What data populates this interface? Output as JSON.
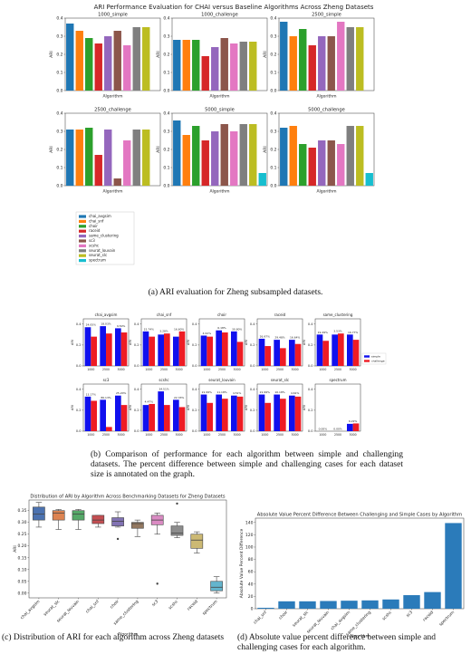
{
  "figure_a": {
    "title": "ARI Performance Evaluation for CHAI versus Baseline Algorithms Across Zheng Datasets",
    "legend": {
      "names": [
        "chai_avgsim",
        "chai_snf",
        "choir",
        "raceid",
        "same_clustering",
        "sc3",
        "scshc",
        "seurat_louvain",
        "seurat_slc",
        "spectrum"
      ],
      "colors": [
        "#1f77b4",
        "#ff7f0e",
        "#2ca02c",
        "#d62728",
        "#9467bd",
        "#8c564b",
        "#e377c2",
        "#7f7f7f",
        "#bcbd22",
        "#17becf"
      ]
    }
  },
  "figure_b": {
    "legend": {
      "names": [
        "simple",
        "challenge"
      ],
      "colors": [
        "#1010ee",
        "#ee1c24"
      ]
    }
  },
  "chart_data": [
    {
      "type": "bar",
      "title": "1000_simple",
      "xlabel": "Algorithm",
      "ylabel": "ARI",
      "values": [
        0.37,
        0.33,
        0.29,
        0.26,
        0.3,
        0.33,
        0.25,
        0.35,
        0.35,
        null
      ],
      "ylim": [
        0,
        0.4
      ],
      "yticks": [
        {
          "value": 0,
          "label": "0.0"
        },
        0.1,
        0.2,
        0.3,
        0.4
      ]
    },
    {
      "type": "bar",
      "title": "1000_challenge",
      "xlabel": "Algorithm",
      "ylabel": "ARI",
      "values": [
        0.28,
        0.28,
        0.28,
        0.19,
        0.24,
        0.29,
        0.26,
        0.27,
        0.27,
        null
      ],
      "ylim": [
        0,
        0.4
      ],
      "yticks": [
        {
          "value": 0,
          "label": "0.0"
        },
        0.1,
        0.2,
        0.3,
        0.4
      ]
    },
    {
      "type": "bar",
      "title": "2500_simple",
      "xlabel": "Algorithm",
      "ylabel": "ARI",
      "values": [
        0.38,
        0.3,
        0.34,
        0.25,
        0.3,
        0.3,
        0.38,
        0.35,
        0.35,
        null
      ],
      "ylim": [
        0,
        0.4
      ],
      "yticks": [
        {
          "value": 0,
          "label": "0.0"
        },
        0.1,
        0.2,
        0.3,
        0.4
      ]
    },
    {
      "type": "bar",
      "title": "2500_challenge",
      "xlabel": "Algorithm",
      "ylabel": "ARI",
      "values": [
        0.31,
        0.31,
        0.32,
        0.17,
        0.31,
        0.04,
        0.25,
        0.31,
        0.31,
        null
      ],
      "ylim": [
        0,
        0.4
      ],
      "yticks": [
        {
          "value": 0,
          "label": "0.0"
        },
        0.1,
        0.2,
        0.3,
        0.4
      ]
    },
    {
      "type": "bar",
      "title": "5000_simple",
      "xlabel": "Algorithm",
      "ylabel": "ARI",
      "values": [
        0.36,
        0.28,
        0.33,
        0.25,
        0.3,
        0.34,
        0.3,
        0.34,
        0.34,
        0.07
      ],
      "ylim": [
        0,
        0.4
      ],
      "yticks": [
        {
          "value": 0,
          "label": "0.0"
        },
        0.1,
        0.2,
        0.3,
        0.4
      ]
    },
    {
      "type": "bar",
      "title": "5000_challenge",
      "xlabel": "Algorithm",
      "ylabel": "ARI",
      "values": [
        0.32,
        0.33,
        0.23,
        0.21,
        0.25,
        0.25,
        0.23,
        0.33,
        0.33,
        0.07
      ],
      "ylim": [
        0,
        0.4
      ],
      "yticks": [
        {
          "value": 0,
          "label": "0.0"
        },
        0.1,
        0.2,
        0.3,
        0.4
      ]
    },
    {
      "type": "grouped_bar",
      "title": "chai_avgsim",
      "ylabel": "ARI",
      "categories": [
        "1000",
        "2500",
        "5000"
      ],
      "series": [
        {
          "values": [
            0.37,
            0.38,
            0.36
          ]
        },
        {
          "values": [
            0.28,
            0.31,
            0.32
          ]
        }
      ],
      "annotations": [
        "24.05%",
        "18.03%",
        "9.50%"
      ],
      "ylim": [
        0,
        0.45
      ],
      "yticks": [
        {
          "value": 0,
          "label": "0.0"
        },
        0.2,
        0.4
      ]
    },
    {
      "type": "grouped_bar",
      "title": "chai_snf",
      "ylabel": "ARI",
      "categories": [
        "1000",
        "2500",
        "5000"
      ],
      "series": [
        {
          "values": [
            0.33,
            0.3,
            0.28
          ]
        },
        {
          "values": [
            0.28,
            0.31,
            0.33
          ]
        }
      ],
      "annotations": [
        "15.74%",
        "3.28%",
        "16.60%"
      ],
      "ylim": [
        0,
        0.45
      ],
      "yticks": [
        {
          "value": 0,
          "label": "0.0"
        },
        0.2,
        0.4
      ]
    },
    {
      "type": "grouped_bar",
      "title": "choir",
      "ylabel": "ARI",
      "categories": [
        "1000",
        "2500",
        "5000"
      ],
      "series": [
        {
          "values": [
            0.29,
            0.34,
            0.33
          ]
        },
        {
          "values": [
            0.28,
            0.32,
            0.23
          ]
        }
      ],
      "annotations": [
        "4.91%",
        "6.18%",
        "30.80%"
      ],
      "ylim": [
        0,
        0.45
      ],
      "yticks": [
        {
          "value": 0,
          "label": "0.0"
        },
        0.2,
        0.4
      ]
    },
    {
      "type": "grouped_bar",
      "title": "raceid",
      "ylabel": "ARI",
      "categories": [
        "1000",
        "2500",
        "5000"
      ],
      "series": [
        {
          "values": [
            0.26,
            0.25,
            0.25
          ]
        },
        {
          "values": [
            0.19,
            0.17,
            0.21
          ]
        }
      ],
      "annotations": [
        "26.97%",
        "29.48%",
        "16.64%"
      ],
      "ylim": [
        0,
        0.45
      ],
      "yticks": [
        {
          "value": 0,
          "label": "0.0"
        },
        0.2,
        0.4
      ]
    },
    {
      "type": "grouped_bar",
      "title": "same_clustering",
      "ylabel": "ARI",
      "categories": [
        "1000",
        "2500",
        "5000"
      ],
      "series": [
        {
          "values": [
            0.3,
            0.3,
            0.3
          ]
        },
        {
          "values": [
            0.24,
            0.31,
            0.25
          ]
        }
      ],
      "annotations": [
        "19.49%",
        "3.53%",
        "16.77%"
      ],
      "ylim": [
        0,
        0.45
      ],
      "yticks": [
        {
          "value": 0,
          "label": "0.0"
        },
        0.2,
        0.4
      ]
    },
    {
      "type": "grouped_bar",
      "title": "sc3",
      "ylabel": "ARI",
      "categories": [
        "1000",
        "2500",
        "5000"
      ],
      "series": [
        {
          "values": [
            0.33,
            0.3,
            0.34
          ]
        },
        {
          "values": [
            0.29,
            0.04,
            0.25
          ]
        }
      ],
      "annotations": [
        "13.17%",
        "86.13%",
        "25.20%"
      ],
      "ylim": [
        0,
        0.45
      ],
      "yticks": [
        {
          "value": 0,
          "label": "0.0"
        },
        0.2,
        0.4
      ]
    },
    {
      "type": "grouped_bar",
      "title": "scshc",
      "ylabel": "ARI",
      "categories": [
        "1000",
        "2500",
        "5000"
      ],
      "series": [
        {
          "values": [
            0.25,
            0.38,
            0.3
          ]
        },
        {
          "values": [
            0.26,
            0.25,
            0.23
          ]
        }
      ],
      "annotations": [
        "4.47%",
        "34.51%",
        "22.33%"
      ],
      "ylim": [
        0,
        0.45
      ],
      "yticks": [
        {
          "value": 0,
          "label": "0.0"
        },
        0.2,
        0.4
      ]
    },
    {
      "type": "grouped_bar",
      "title": "seurat_louvain",
      "ylabel": "ARI",
      "categories": [
        "1000",
        "2500",
        "5000"
      ],
      "series": [
        {
          "values": [
            0.35,
            0.35,
            0.34
          ]
        },
        {
          "values": [
            0.27,
            0.31,
            0.33
          ]
        }
      ],
      "annotations": [
        "21.99%",
        "11.18%",
        "4.51%"
      ],
      "ylim": [
        0,
        0.45
      ],
      "yticks": [
        {
          "value": 0,
          "label": "0.0"
        },
        0.2,
        0.4
      ]
    },
    {
      "type": "grouped_bar",
      "title": "seurat_slc",
      "ylabel": "ARI",
      "categories": [
        "1000",
        "2500",
        "5000"
      ],
      "series": [
        {
          "values": [
            0.35,
            0.35,
            0.34
          ]
        },
        {
          "values": [
            0.27,
            0.31,
            0.33
          ]
        }
      ],
      "annotations": [
        "21.99%",
        "10.18%",
        "4.61%"
      ],
      "ylim": [
        0,
        0.45
      ],
      "yticks": [
        {
          "value": 0,
          "label": "0.0"
        },
        0.2,
        0.4
      ]
    },
    {
      "type": "grouped_bar",
      "title": "spectrum",
      "ylabel": "ARI",
      "categories": [
        "1000",
        "2500",
        "5000"
      ],
      "series": [
        {
          "values": [
            0,
            0,
            0.07
          ]
        },
        {
          "values": [
            0,
            0,
            0.074
          ]
        }
      ],
      "annotations": [
        "0.00%",
        "0.00%",
        "6.22%"
      ],
      "ylim": [
        0,
        0.45
      ],
      "yticks": [
        {
          "value": 0,
          "label": "0.0"
        },
        0.2,
        0.4
      ]
    },
    {
      "type": "box",
      "title": "Distribution of ARI by Algorithm Across Benchmarking Datasets for Zheng Datasets",
      "xlabel": "Algorithm",
      "ylabel": "ARI",
      "categories": [
        "chai_avgsim",
        "seurat_slc",
        "seurat_louvain",
        "chai_snf",
        "choir",
        "same_clustering",
        "sc3",
        "scshc",
        "raceid",
        "spectrum"
      ],
      "colors": [
        "#4c72b0",
        "#dd8452",
        "#55a868",
        "#c44e52",
        "#8172b3",
        "#937860",
        "#da8bc3",
        "#8c8c8c",
        "#ccb974",
        "#64b5cd"
      ],
      "boxes": [
        {
          "whislo": 0.28,
          "q1": 0.31,
          "med": 0.335,
          "q3": 0.365,
          "whishi": 0.385
        },
        {
          "whislo": 0.27,
          "q1": 0.31,
          "med": 0.34,
          "q3": 0.35,
          "whishi": 0.355
        },
        {
          "whislo": 0.27,
          "q1": 0.31,
          "med": 0.335,
          "q3": 0.35,
          "whishi": 0.355
        },
        {
          "whislo": 0.28,
          "q1": 0.295,
          "med": 0.31,
          "q3": 0.33,
          "whishi": 0.33
        },
        {
          "whislo": 0.28,
          "q1": 0.285,
          "med": 0.305,
          "q3": 0.32,
          "whishi": 0.345,
          "fliers": [
            0.23
          ]
        },
        {
          "whislo": 0.24,
          "q1": 0.275,
          "med": 0.295,
          "q3": 0.3,
          "whishi": 0.31
        },
        {
          "whislo": 0.25,
          "q1": 0.29,
          "med": 0.31,
          "q3": 0.33,
          "whishi": 0.34,
          "fliers": [
            0.04
          ]
        },
        {
          "whislo": 0.235,
          "q1": 0.245,
          "med": 0.255,
          "q3": 0.285,
          "whishi": 0.3,
          "fliers": [
            0.38
          ]
        },
        {
          "whislo": 0.17,
          "q1": 0.19,
          "med": 0.225,
          "q3": 0.25,
          "whishi": 0.26
        },
        {
          "whislo": 0.0,
          "q1": 0.01,
          "med": 0.025,
          "q3": 0.05,
          "whishi": 0.07
        }
      ],
      "ylim": [
        -0.02,
        0.395
      ],
      "yticks": [
        {
          "value": 0,
          "label": "0.00"
        },
        {
          "value": 0.05,
          "label": "0.05"
        },
        {
          "value": 0.1,
          "label": "0.10"
        },
        {
          "value": 0.15,
          "label": "0.15"
        },
        {
          "value": 0.2,
          "label": "0.20"
        },
        {
          "value": 0.25,
          "label": "0.25"
        },
        {
          "value": 0.3,
          "label": "0.30"
        },
        {
          "value": 0.35,
          "label": "0.35"
        }
      ]
    },
    {
      "type": "bar",
      "title": "Absolute Value Percent Difference Between Challenging and Simple Cases by Algorithm",
      "xlabel": "Algorithm",
      "ylabel": "Absolute Value Percent Difference",
      "categories": [
        "chai_snf",
        "choir",
        "seurat_slc",
        "seurat_louvain",
        "chai_avgsim",
        "same_clustering",
        "scshc",
        "sc3",
        "raceid",
        "spectrum"
      ],
      "values": [
        1.5,
        12,
        12,
        12.5,
        13,
        13.5,
        15,
        22,
        27,
        139
      ],
      "color": "#2b7bba",
      "ylim": [
        0,
        147
      ],
      "yticks": [
        0,
        20,
        40,
        60,
        80,
        100,
        120,
        140
      ]
    }
  ],
  "captions": [
    "(a) ARI evaluation for Zheng subsampled datasets.",
    "(b) Comparison of performance for each algorithm between simple and challenging datasets. The percent difference between simple and challenging cases for each dataset size is annotated on the graph.",
    "(c) Distribution of ARI for each algorithm across Zheng datasets",
    "(d) Absolute value percent difference between simple and challenging cases for each algorithm."
  ]
}
